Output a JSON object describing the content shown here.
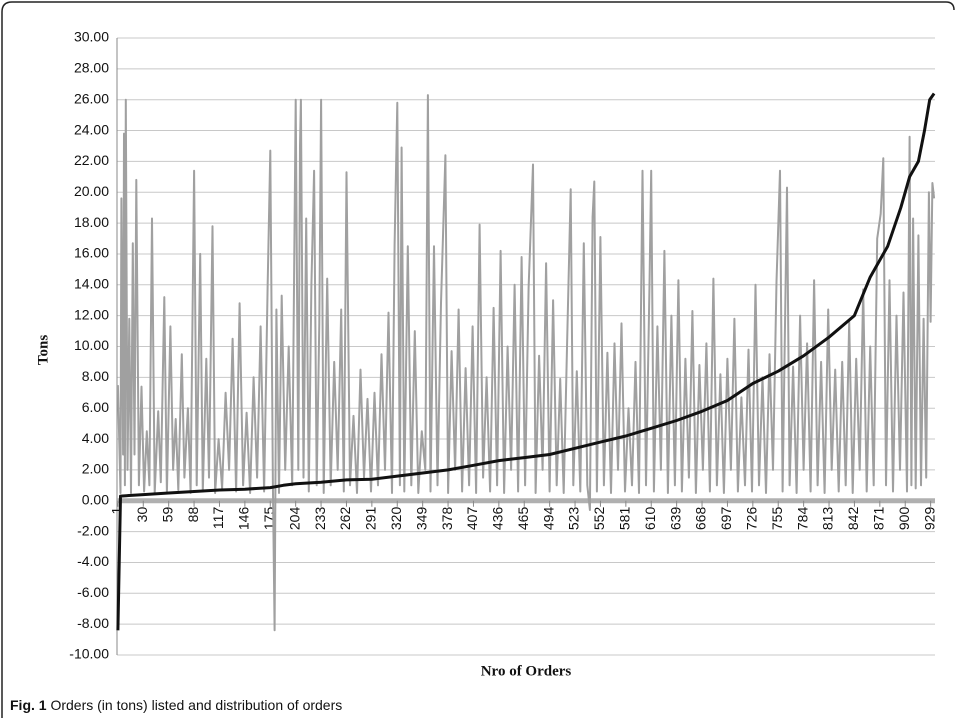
{
  "chart_data": {
    "type": "line",
    "ylabel": "Tons",
    "xlabel": "Nro of Orders",
    "xlim": [
      0,
      934
    ],
    "xticks": [
      1,
      30,
      59,
      88,
      117,
      146,
      175,
      204,
      233,
      262,
      291,
      320,
      349,
      378,
      407,
      436,
      465,
      494,
      523,
      552,
      581,
      610,
      639,
      668,
      697,
      726,
      755,
      784,
      813,
      842,
      871,
      900,
      929
    ],
    "ylim": [
      -10,
      30
    ],
    "yticks": [
      {
        "value": -10,
        "label": "-10.00"
      },
      {
        "value": -8,
        "label": "-8.00"
      },
      {
        "value": -6,
        "label": "-6.00"
      },
      {
        "value": -4,
        "label": "-4.00"
      },
      {
        "value": -2,
        "label": "-2.00"
      },
      {
        "value": 0,
        "label": "0.00"
      },
      {
        "value": 2,
        "label": "2.00"
      },
      {
        "value": 4,
        "label": "4.00"
      },
      {
        "value": 6,
        "label": "6.00"
      },
      {
        "value": 8,
        "label": "8.00"
      },
      {
        "value": 10,
        "label": "10.00"
      },
      {
        "value": 12,
        "label": "12.00"
      },
      {
        "value": 14,
        "label": "14.00"
      },
      {
        "value": 16,
        "label": "16.00"
      },
      {
        "value": 18,
        "label": "18.00"
      },
      {
        "value": 20,
        "label": "20.00"
      },
      {
        "value": 22,
        "label": "22.00"
      },
      {
        "value": 24,
        "label": "24.00"
      },
      {
        "value": 26,
        "label": "26.00"
      },
      {
        "value": 28,
        "label": "28.00"
      },
      {
        "value": 30,
        "label": "30.00"
      }
    ],
    "grid": true,
    "series": [
      {
        "color": "#a0a0a0",
        "x": [
          1,
          4,
          5,
          7,
          8,
          9,
          10,
          12,
          14,
          16,
          18,
          20,
          22,
          25,
          28,
          31,
          34,
          37,
          40,
          43,
          47,
          50,
          54,
          57,
          61,
          64,
          67,
          70,
          74,
          77,
          81,
          84,
          88,
          91,
          95,
          98,
          102,
          105,
          109,
          112,
          116,
          120,
          124,
          128,
          132,
          136,
          140,
          144,
          148,
          152,
          156,
          160,
          164,
          168,
          172,
          175,
          178,
          180,
          182,
          185,
          188,
          192,
          196,
          200,
          204,
          207,
          209,
          210,
          213,
          216,
          219,
          222,
          225,
          228,
          231,
          233,
          236,
          240,
          244,
          248,
          252,
          256,
          259,
          262,
          266,
          270,
          274,
          278,
          282,
          286,
          290,
          294,
          298,
          302,
          306,
          310,
          314,
          317,
          320,
          323,
          325,
          328,
          332,
          336,
          340,
          344,
          348,
          352,
          355,
          358,
          362,
          366,
          370,
          375,
          378,
          382,
          386,
          390,
          394,
          398,
          402,
          406,
          410,
          414,
          418,
          422,
          426,
          430,
          434,
          438,
          442,
          446,
          450,
          454,
          458,
          462,
          466,
          470,
          475,
          478,
          482,
          486,
          490,
          494,
          498,
          502,
          506,
          510,
          514,
          518,
          521,
          525,
          529,
          533,
          537,
          540,
          543,
          545,
          548,
          552,
          556,
          560,
          564,
          568,
          572,
          576,
          580,
          584,
          588,
          592,
          596,
          600,
          604,
          608,
          610,
          613,
          617,
          621,
          625,
          629,
          633,
          637,
          641,
          645,
          649,
          653,
          657,
          661,
          665,
          669,
          673,
          677,
          681,
          685,
          689,
          693,
          697,
          701,
          705,
          709,
          713,
          717,
          721,
          725,
          729,
          733,
          737,
          741,
          745,
          749,
          753,
          757,
          760,
          765,
          768,
          772,
          776,
          780,
          784,
          788,
          792,
          796,
          800,
          804,
          808,
          812,
          816,
          820,
          824,
          828,
          832,
          836,
          840,
          844,
          848,
          852,
          856,
          860,
          864,
          868,
          872,
          875,
          878,
          882,
          886,
          890,
          894,
          898,
          902,
          905,
          907,
          909,
          912,
          915,
          918,
          921,
          924,
          927,
          929,
          931,
          933
        ],
        "values": [
          7.5,
          0.5,
          19.6,
          3,
          23.8,
          1,
          26,
          2,
          11.8,
          0.5,
          16.7,
          3,
          20.8,
          1,
          7.4,
          0.6,
          4.5,
          1,
          18.3,
          0.5,
          5.8,
          1.2,
          13.2,
          0.5,
          11.3,
          2,
          5.3,
          0.7,
          9.5,
          1.5,
          6,
          0.5,
          21.4,
          1,
          16,
          0.6,
          9.2,
          1.5,
          17.8,
          0.5,
          4,
          0.8,
          7,
          2,
          10.5,
          0.6,
          12.8,
          1,
          5.7,
          0.5,
          8,
          1.5,
          11.3,
          0.6,
          13.8,
          22.7,
          1,
          -8.4,
          12.4,
          0.5,
          13.3,
          2,
          10,
          1,
          26,
          2,
          23,
          26,
          1.5,
          18.3,
          0.6,
          14,
          21.4,
          1,
          11.5,
          26,
          0.5,
          14.4,
          1,
          9,
          2,
          12.4,
          0.6,
          21.3,
          1,
          5.5,
          0.5,
          8.5,
          1.5,
          6.6,
          0.6,
          7,
          1,
          9.5,
          2,
          12.2,
          0.5,
          16.6,
          25.8,
          1,
          22.9,
          0.6,
          16.5,
          1,
          11,
          0.5,
          4.5,
          2,
          26.3,
          0.6,
          16.5,
          1,
          12.8,
          22.4,
          0.5,
          9.7,
          2,
          12.4,
          0.6,
          8.6,
          1,
          11.3,
          0.5,
          17.9,
          1.5,
          8,
          0.6,
          12.5,
          1,
          16.2,
          0.5,
          10,
          2,
          14,
          0.6,
          15.8,
          1,
          13.8,
          21.8,
          0.5,
          9.4,
          2,
          15.4,
          0.6,
          13,
          1,
          7.9,
          0.5,
          10.5,
          20.2,
          1,
          8.4,
          0.6,
          16.7,
          1,
          -0.6,
          18.4,
          20.7,
          0.6,
          17.1,
          1,
          9.6,
          0.5,
          10.2,
          2,
          11.5,
          0.6,
          6,
          1,
          9,
          0.5,
          21.4,
          1,
          14,
          21.4,
          0.6,
          11.3,
          2,
          16.2,
          0.5,
          12,
          1,
          14.3,
          0.6,
          9.2,
          1.5,
          12.3,
          0.5,
          8.8,
          2,
          10.2,
          0.6,
          14.4,
          1,
          8.2,
          0.5,
          9.2,
          2,
          11.8,
          0.6,
          6.7,
          1,
          9.8,
          0.6,
          14,
          1,
          8,
          0.5,
          9.5,
          2,
          14.2,
          21.4,
          0.6,
          20.3,
          1,
          8.7,
          0.5,
          12,
          2,
          10.2,
          0.6,
          14.3,
          1,
          9,
          0.5,
          12.4,
          2,
          8.5,
          0.6,
          9,
          1,
          11.6,
          0.5,
          9.2,
          2,
          13.7,
          0.6,
          10,
          1,
          17,
          18.6,
          22.2,
          1,
          14.3,
          0.6,
          12,
          2,
          13.5,
          0.6,
          23.6,
          1,
          18.3,
          0.8,
          17.2,
          1,
          11.8,
          1.5,
          20,
          11.6,
          20.6,
          19.6
        ]
      },
      {
        "color": "#111111",
        "x": [
          1,
          4,
          30,
          59,
          88,
          117,
          146,
          175,
          190,
          204,
          233,
          262,
          291,
          320,
          349,
          378,
          407,
          436,
          465,
          494,
          523,
          552,
          581,
          610,
          639,
          668,
          697,
          726,
          755,
          784,
          813,
          842,
          860,
          880,
          895,
          905,
          915,
          922,
          928,
          933
        ],
        "values": [
          -8.4,
          0.3,
          0.4,
          0.5,
          0.6,
          0.7,
          0.75,
          0.85,
          1.0,
          1.1,
          1.2,
          1.35,
          1.4,
          1.6,
          1.8,
          2.0,
          2.3,
          2.6,
          2.8,
          3.0,
          3.4,
          3.8,
          4.2,
          4.7,
          5.2,
          5.8,
          6.5,
          7.6,
          8.4,
          9.4,
          10.6,
          12.0,
          14.5,
          16.5,
          19,
          21,
          22,
          24,
          26,
          26.4
        ]
      }
    ]
  },
  "caption": {
    "label": "Fig. 1",
    "text": "Orders (in tons) listed and distribution of orders"
  }
}
